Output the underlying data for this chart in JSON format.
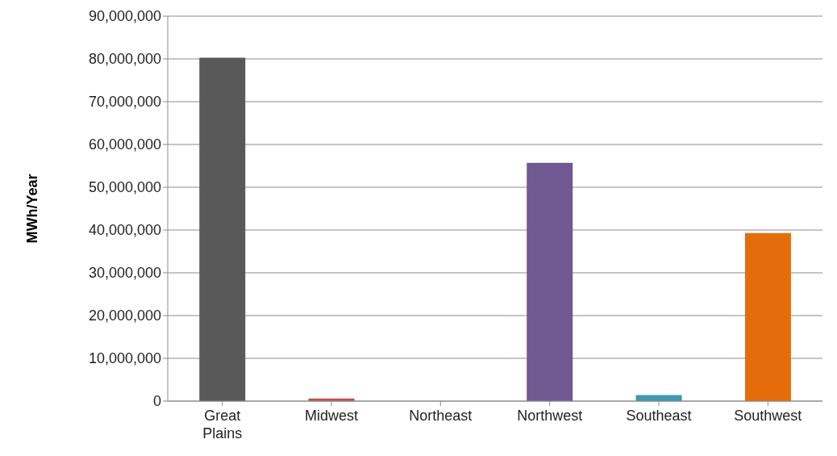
{
  "chart_data": {
    "type": "bar",
    "ylabel": "MWh/Year",
    "categories": [
      "Great\nPlains",
      "Midwest",
      "Northeast",
      "Northwest",
      "Southeast",
      "Southwest"
    ],
    "values": [
      80300000,
      600000,
      0,
      55700000,
      1400000,
      39300000
    ],
    "colors": [
      "#595959",
      "#c0504d",
      "#4f81bd",
      "#705890",
      "#4198af",
      "#e46c0a"
    ],
    "ylim": [
      0,
      90000000
    ],
    "yticks": [
      0,
      {
        "value": 10000000,
        "label": "10,000,000"
      },
      {
        "value": 20000000,
        "label": "20,000,000"
      },
      {
        "value": 30000000,
        "label": "30,000,000"
      },
      {
        "value": 40000000,
        "label": "40,000,000"
      },
      {
        "value": 50000000,
        "label": "50,000,000"
      },
      {
        "value": 60000000,
        "label": "60,000,000"
      },
      {
        "value": 70000000,
        "label": "70,000,000"
      },
      {
        "value": 80000000,
        "label": "80,000,000"
      },
      {
        "value": 90000000,
        "label": "90,000,000"
      }
    ],
    "grid": "y",
    "legend": false
  }
}
